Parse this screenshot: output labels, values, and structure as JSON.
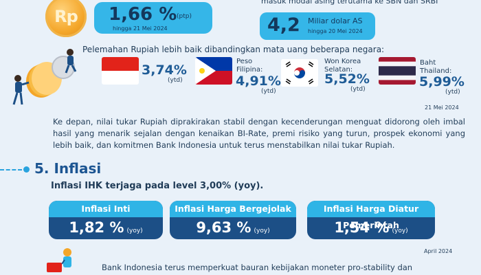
{
  "top": {
    "coin_symbol": "Rp",
    "left_value": "1,66 %",
    "left_unit": "(ptp)",
    "left_date": "hingga 21 Mei 2024",
    "right_desc": "masuk modal asing terutama ke SBN dan SRBI",
    "right_value": "4,2",
    "right_label": "Miliar dolar AS",
    "right_date": "hingga 20 Mei 2024"
  },
  "currency": {
    "intro": "Pelemahan Rupiah lebih baik dibandingkan mata uang beberapa negara:",
    "items": [
      {
        "flag": "indonesia-flag",
        "name": "",
        "value": "3,74%",
        "unit": "(ytd)"
      },
      {
        "flag": "philippines-flag",
        "name": "Peso Filipina:",
        "value": "4,91%",
        "unit": "(ytd)"
      },
      {
        "flag": "south-korea-flag",
        "name": "Won Korea Selatan:",
        "value": "5,52%",
        "unit": "(ytd)"
      },
      {
        "flag": "thailand-flag",
        "name": "Baht Thailand:",
        "value": "5,99%",
        "unit": "(ytd)"
      }
    ],
    "date": "21 Mei 2024",
    "paragraph": "Ke depan, nilai tukar Rupiah diprakirakan stabil dengan kecenderungan menguat didorong oleh imbal hasil yang menarik sejalan dengan kenaikan BI-Rate, premi risiko yang turun, prospek ekonomi yang lebih baik, dan komitmen Bank Indonesia untuk terus menstabilkan nilai tukar Rupiah."
  },
  "inflation": {
    "title": "5. Inflasi",
    "subtitle": "Inflasi IHK terjaga pada level 3,00% (yoy).",
    "cards": [
      {
        "label": "Inflasi Inti",
        "value": "1,82 %",
        "unit": "(yoy)"
      },
      {
        "label": "Inflasi Harga Bergejolak",
        "value": "9,63 %",
        "unit": "(yoy)"
      },
      {
        "label": "Inflasi Harga Diatur Pemerintah",
        "value": "1,54 %",
        "unit": "(yoy)"
      }
    ],
    "date": "April 2024",
    "bottom_text": "Bank  Indonesia  terus  memperkuat  bauran  kebijakan  moneter  pro-stability  dan"
  },
  "colors": {
    "background": "#e9f1f9",
    "accent_light": "#2fb4e6",
    "accent_dark": "#1c4f86",
    "text": "#1f3b57"
  }
}
